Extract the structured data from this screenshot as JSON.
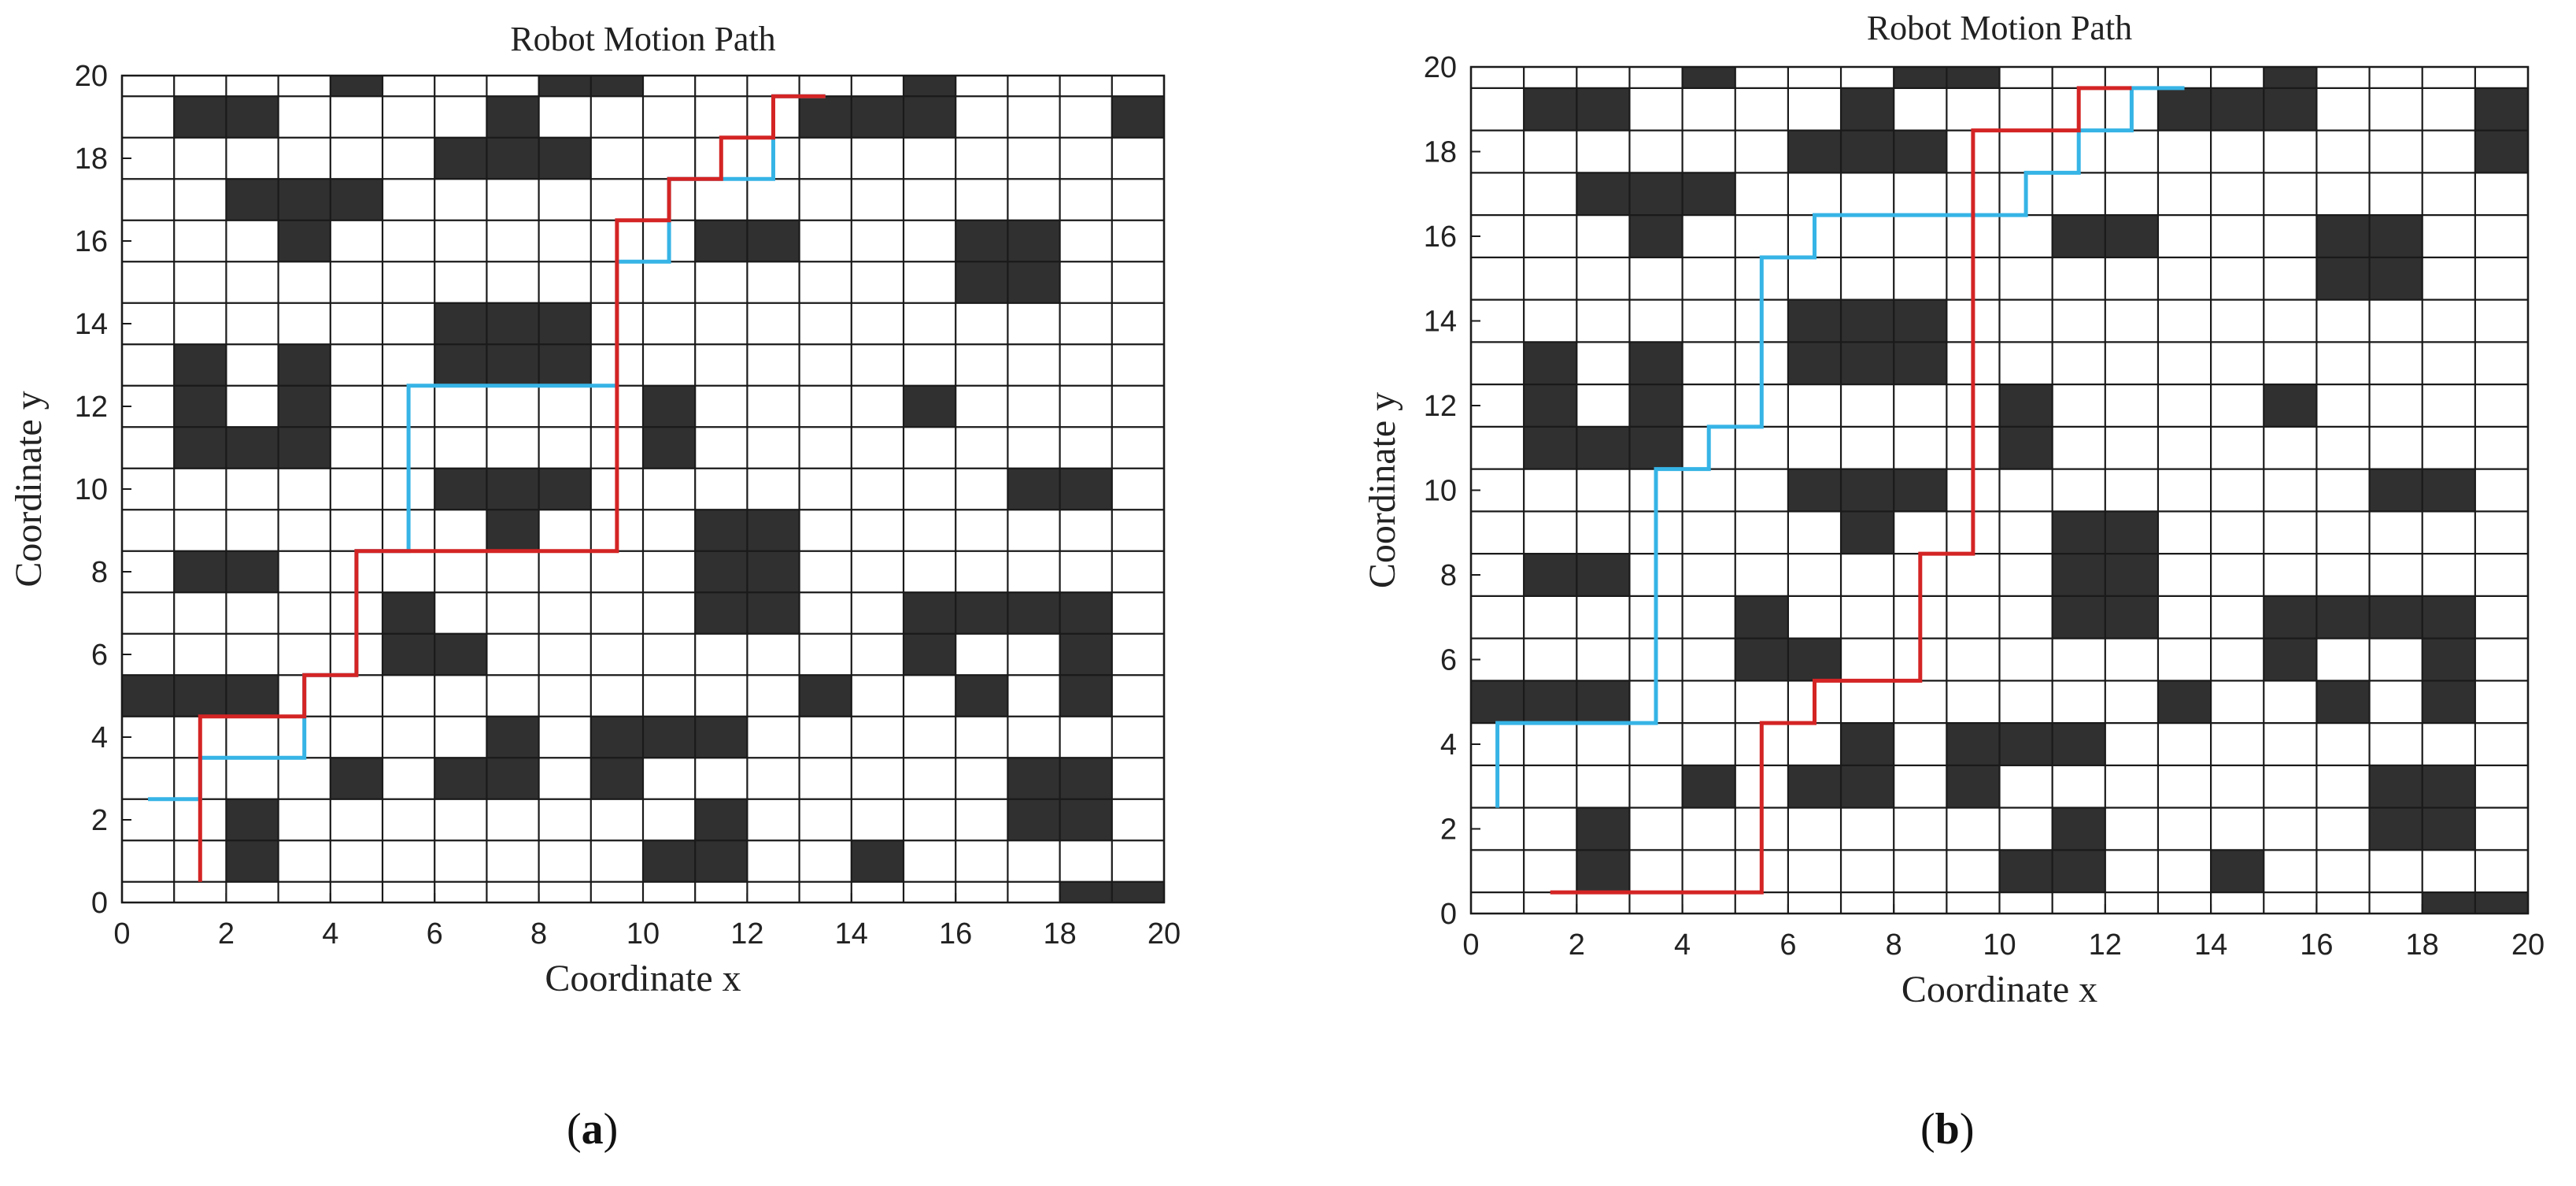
{
  "colors": {
    "obstacle": "#303030",
    "free": "#ffffff",
    "grid": "#1a1a1a",
    "path_blue": "#36b4e6",
    "path_red": "#d42424"
  },
  "panels": [
    {
      "label_open": "(",
      "label_letter": "a",
      "label_close": ")"
    },
    {
      "label_open": "(",
      "label_letter": "b",
      "label_close": ")"
    }
  ],
  "chart_data": [
    {
      "type": "grid-path",
      "title": "Robot Motion Path",
      "xlabel": "Coordinate x",
      "ylabel": "Coordinate y",
      "xlim": [
        0,
        20
      ],
      "ylim": [
        0,
        20
      ],
      "xticks": [
        0,
        2,
        4,
        6,
        8,
        10,
        12,
        14,
        16,
        18,
        20
      ],
      "yticks": [
        0,
        2,
        4,
        6,
        8,
        10,
        12,
        14,
        16,
        18,
        20
      ],
      "obstacles": [
        [
          4,
          19
        ],
        [
          8,
          19
        ],
        [
          9,
          19
        ],
        [
          15,
          19
        ],
        [
          1,
          18
        ],
        [
          2,
          18
        ],
        [
          7,
          18
        ],
        [
          13,
          18
        ],
        [
          14,
          18
        ],
        [
          15,
          18
        ],
        [
          19,
          18
        ],
        [
          6,
          17
        ],
        [
          7,
          17
        ],
        [
          8,
          17
        ],
        [
          2,
          16
        ],
        [
          3,
          16
        ],
        [
          4,
          16
        ],
        [
          3,
          15
        ],
        [
          11,
          15
        ],
        [
          12,
          15
        ],
        [
          16,
          15
        ],
        [
          17,
          15
        ],
        [
          16,
          14
        ],
        [
          17,
          14
        ],
        [
          6,
          13
        ],
        [
          7,
          13
        ],
        [
          8,
          13
        ],
        [
          1,
          12
        ],
        [
          3,
          12
        ],
        [
          6,
          12
        ],
        [
          7,
          12
        ],
        [
          8,
          12
        ],
        [
          1,
          11
        ],
        [
          3,
          11
        ],
        [
          10,
          11
        ],
        [
          15,
          11
        ],
        [
          1,
          10
        ],
        [
          2,
          10
        ],
        [
          3,
          10
        ],
        [
          10,
          10
        ],
        [
          6,
          9
        ],
        [
          7,
          9
        ],
        [
          8,
          9
        ],
        [
          17,
          9
        ],
        [
          18,
          9
        ],
        [
          7,
          8
        ],
        [
          11,
          8
        ],
        [
          12,
          8
        ],
        [
          1,
          7
        ],
        [
          2,
          7
        ],
        [
          11,
          7
        ],
        [
          12,
          7
        ],
        [
          5,
          6
        ],
        [
          11,
          6
        ],
        [
          12,
          6
        ],
        [
          15,
          6
        ],
        [
          16,
          6
        ],
        [
          17,
          6
        ],
        [
          18,
          6
        ],
        [
          5,
          5
        ],
        [
          6,
          5
        ],
        [
          15,
          5
        ],
        [
          18,
          5
        ],
        [
          0,
          4
        ],
        [
          1,
          4
        ],
        [
          2,
          4
        ],
        [
          13,
          4
        ],
        [
          16,
          4
        ],
        [
          18,
          4
        ],
        [
          7,
          3
        ],
        [
          9,
          3
        ],
        [
          10,
          3
        ],
        [
          11,
          3
        ],
        [
          4,
          2
        ],
        [
          6,
          2
        ],
        [
          7,
          2
        ],
        [
          9,
          2
        ],
        [
          17,
          2
        ],
        [
          18,
          2
        ],
        [
          2,
          1
        ],
        [
          11,
          1
        ],
        [
          17,
          1
        ],
        [
          18,
          1
        ],
        [
          2,
          0
        ],
        [
          10,
          0
        ],
        [
          11,
          0
        ],
        [
          14,
          0
        ],
        [
          18,
          -1
        ],
        [
          19,
          -1
        ]
      ],
      "series": [
        {
          "color": "blue",
          "points": [
            [
              0.5,
              2.5
            ],
            [
              1.5,
              2.5
            ],
            [
              1.5,
              3.5
            ],
            [
              3.5,
              3.5
            ],
            [
              3.5,
              5.5
            ],
            [
              4.5,
              5.5
            ],
            [
              4.5,
              8.5
            ],
            [
              5.5,
              8.5
            ],
            [
              5.5,
              12.5
            ],
            [
              9.5,
              12.5
            ],
            [
              9.5,
              15.5
            ],
            [
              10.5,
              15.5
            ],
            [
              10.5,
              17.5
            ],
            [
              12.5,
              17.5
            ],
            [
              12.5,
              19.5
            ],
            [
              13.5,
              19.5
            ]
          ]
        },
        {
          "color": "red",
          "points": [
            [
              1.5,
              0.5
            ],
            [
              1.5,
              4.5
            ],
            [
              3.5,
              4.5
            ],
            [
              3.5,
              5.5
            ],
            [
              4.5,
              5.5
            ],
            [
              4.5,
              8.5
            ],
            [
              9.5,
              8.5
            ],
            [
              9.5,
              16.5
            ],
            [
              10.5,
              16.5
            ],
            [
              10.5,
              17.5
            ],
            [
              11.5,
              17.5
            ],
            [
              11.5,
              18.5
            ],
            [
              12.5,
              18.5
            ],
            [
              12.5,
              19.5
            ],
            [
              13.5,
              19.5
            ]
          ]
        }
      ]
    },
    {
      "type": "grid-path",
      "title": "Robot Motion Path",
      "xlabel": "Coordinate x",
      "ylabel": "Coordinate y",
      "xlim": [
        0,
        20
      ],
      "ylim": [
        0,
        20
      ],
      "xticks": [
        0,
        2,
        4,
        6,
        8,
        10,
        12,
        14,
        16,
        18,
        20
      ],
      "yticks": [
        0,
        2,
        4,
        6,
        8,
        10,
        12,
        14,
        16,
        18,
        20
      ],
      "obstacles": [
        [
          4,
          19
        ],
        [
          8,
          19
        ],
        [
          9,
          19
        ],
        [
          15,
          19
        ],
        [
          1,
          18
        ],
        [
          2,
          18
        ],
        [
          7,
          18
        ],
        [
          13,
          18
        ],
        [
          14,
          18
        ],
        [
          15,
          18
        ],
        [
          19,
          18
        ],
        [
          6,
          17
        ],
        [
          7,
          17
        ],
        [
          8,
          17
        ],
        [
          19,
          17
        ],
        [
          2,
          16
        ],
        [
          3,
          16
        ],
        [
          4,
          16
        ],
        [
          3,
          15
        ],
        [
          11,
          15
        ],
        [
          12,
          15
        ],
        [
          16,
          15
        ],
        [
          17,
          15
        ],
        [
          16,
          14
        ],
        [
          17,
          14
        ],
        [
          6,
          13
        ],
        [
          7,
          13
        ],
        [
          8,
          13
        ],
        [
          1,
          12
        ],
        [
          3,
          12
        ],
        [
          6,
          12
        ],
        [
          7,
          12
        ],
        [
          8,
          12
        ],
        [
          1,
          11
        ],
        [
          3,
          11
        ],
        [
          10,
          11
        ],
        [
          15,
          11
        ],
        [
          1,
          10
        ],
        [
          2,
          10
        ],
        [
          3,
          10
        ],
        [
          10,
          10
        ],
        [
          6,
          9
        ],
        [
          7,
          9
        ],
        [
          8,
          9
        ],
        [
          17,
          9
        ],
        [
          18,
          9
        ],
        [
          7,
          8
        ],
        [
          11,
          8
        ],
        [
          12,
          8
        ],
        [
          1,
          7
        ],
        [
          2,
          7
        ],
        [
          11,
          7
        ],
        [
          12,
          7
        ],
        [
          5,
          6
        ],
        [
          11,
          6
        ],
        [
          12,
          6
        ],
        [
          15,
          6
        ],
        [
          16,
          6
        ],
        [
          17,
          6
        ],
        [
          18,
          6
        ],
        [
          5,
          5
        ],
        [
          6,
          5
        ],
        [
          15,
          5
        ],
        [
          18,
          5
        ],
        [
          0,
          4
        ],
        [
          1,
          4
        ],
        [
          2,
          4
        ],
        [
          13,
          4
        ],
        [
          16,
          4
        ],
        [
          18,
          4
        ],
        [
          7,
          3
        ],
        [
          9,
          3
        ],
        [
          10,
          3
        ],
        [
          11,
          3
        ],
        [
          4,
          2
        ],
        [
          6,
          2
        ],
        [
          7,
          2
        ],
        [
          9,
          2
        ],
        [
          17,
          2
        ],
        [
          18,
          2
        ],
        [
          2,
          1
        ],
        [
          11,
          1
        ],
        [
          17,
          1
        ],
        [
          18,
          1
        ],
        [
          2,
          0
        ],
        [
          10,
          0
        ],
        [
          11,
          0
        ],
        [
          14,
          0
        ],
        [
          18,
          -1
        ],
        [
          19,
          -1
        ]
      ],
      "series": [
        {
          "color": "blue",
          "points": [
            [
              0.5,
              2.5
            ],
            [
              0.5,
              4.5
            ],
            [
              3.5,
              4.5
            ],
            [
              3.5,
              10.5
            ],
            [
              4.5,
              10.5
            ],
            [
              4.5,
              11.5
            ],
            [
              5.5,
              11.5
            ],
            [
              5.5,
              15.5
            ],
            [
              6.5,
              15.5
            ],
            [
              6.5,
              16.5
            ],
            [
              10.5,
              16.5
            ],
            [
              10.5,
              17.5
            ],
            [
              11.5,
              17.5
            ],
            [
              11.5,
              18.5
            ],
            [
              12.5,
              18.5
            ],
            [
              12.5,
              19.5
            ],
            [
              13.5,
              19.5
            ]
          ]
        },
        {
          "color": "red",
          "points": [
            [
              1.5,
              0.5
            ],
            [
              5.5,
              0.5
            ],
            [
              5.5,
              4.5
            ],
            [
              6.5,
              4.5
            ],
            [
              6.5,
              5.5
            ],
            [
              8.5,
              5.5
            ],
            [
              8.5,
              8.5
            ],
            [
              9.5,
              8.5
            ],
            [
              9.5,
              18.5
            ],
            [
              11.5,
              18.5
            ],
            [
              11.5,
              19.5
            ],
            [
              12.5,
              19.5
            ]
          ]
        }
      ]
    }
  ]
}
